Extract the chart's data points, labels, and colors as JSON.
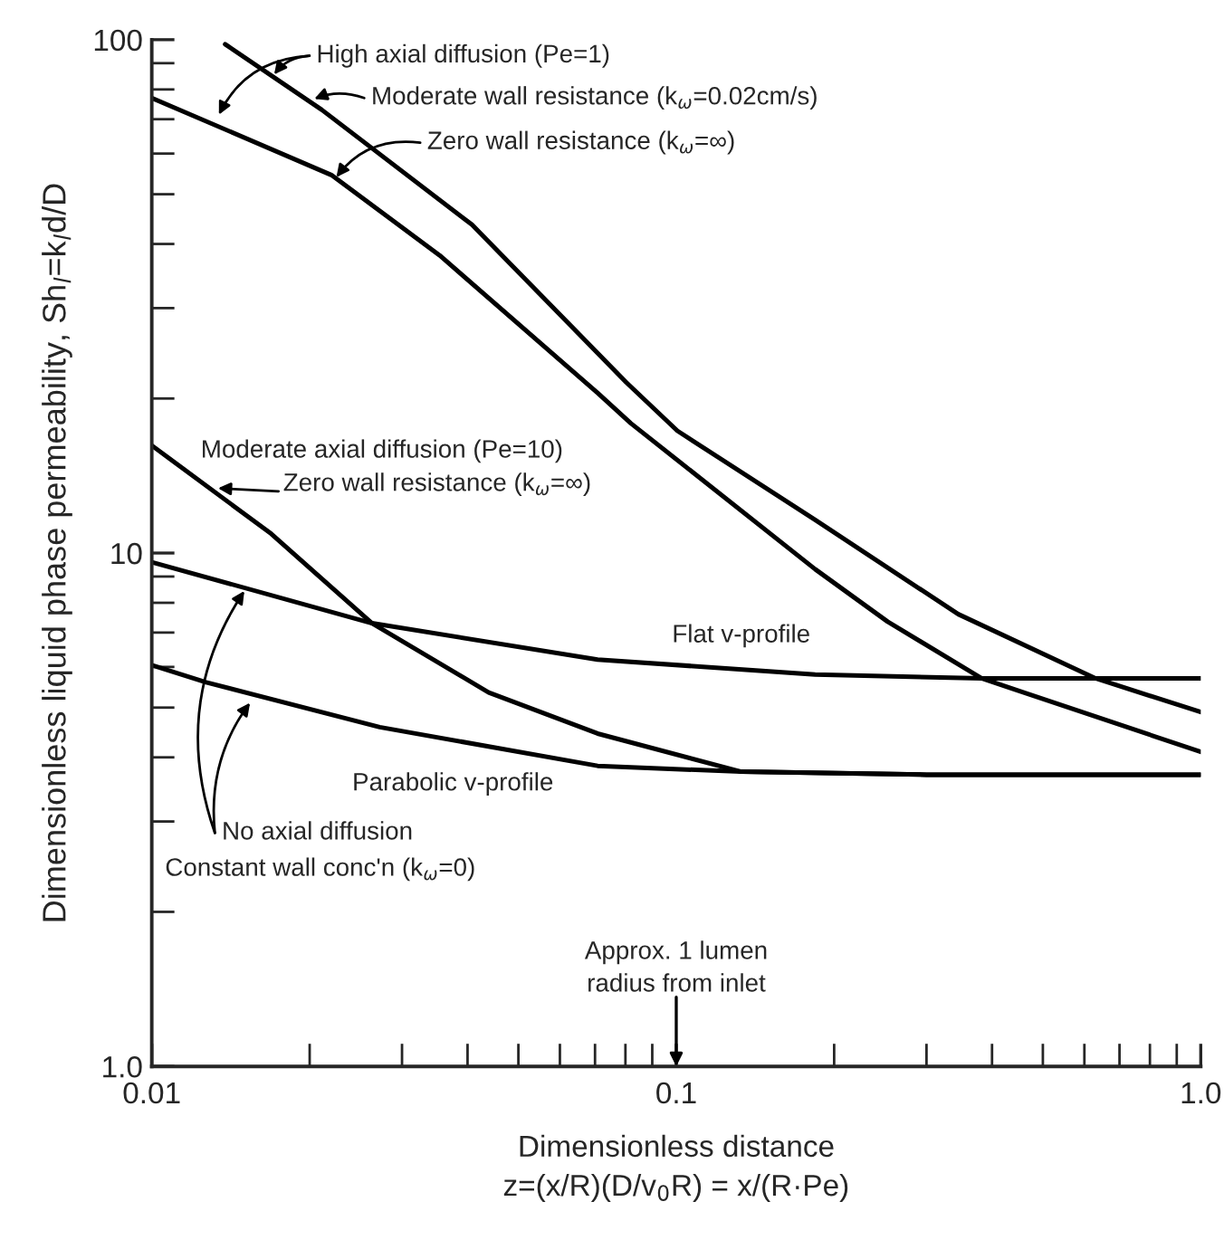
{
  "chart_data": {
    "type": "line",
    "log": "xy",
    "grid": false,
    "xlabel": "Dimensionless distance\nz=(x/R)(D/v$_{0}$R) = x/(R·Pe)",
    "ylabel": "Dimensionless liquid phase permeability, Sh$_{l}$=k$_{l}$d/D",
    "xlim": [
      0.01,
      1.0
    ],
    "ylim": [
      1.0,
      100
    ],
    "xticks": [
      0.01,
      0.1,
      {
        "value": 1.0,
        "label": "1.0"
      }
    ],
    "yticks": [
      {
        "value": 1.0,
        "label": "1.0"
      },
      10,
      100
    ],
    "series": [
      {
        "color": "#000000",
        "x": [
          0.0138,
          0.0211,
          0.0408,
          0.0803,
          0.1005,
          0.184,
          0.345,
          0.63,
          1.0
        ],
        "values": [
          98,
          73,
          43.6,
          21.5,
          17.3,
          11.6,
          7.6,
          5.7,
          4.9
        ]
      },
      {
        "color": "#000000",
        "x": [
          0.01,
          0.022,
          0.0354,
          0.0708,
          0.0819,
          0.184,
          0.253,
          0.382,
          1.0
        ],
        "values": [
          77,
          54.5,
          38,
          20.5,
          17.9,
          9.3,
          7.35,
          5.7,
          4.1
        ]
      },
      {
        "color": "#000000",
        "x": [
          0.01,
          0.0169,
          0.0263,
          0.0439,
          0.0708,
          0.133,
          0.3,
          1.0
        ],
        "values": [
          16.2,
          10.9,
          7.3,
          5.35,
          4.45,
          3.75,
          3.7,
          3.7
        ]
      },
      {
        "color": "#000000",
        "x": [
          0.01,
          0.0263,
          0.0708,
          0.184,
          0.382,
          1.0
        ],
        "values": [
          9.6,
          7.3,
          6.2,
          5.8,
          5.7,
          5.7
        ]
      },
      {
        "color": "#000000",
        "x": [
          0.01,
          0.0127,
          0.0272,
          0.0708,
          0.133,
          0.3,
          1.0
        ],
        "values": [
          6.05,
          5.6,
          4.58,
          3.85,
          3.75,
          3.7,
          3.7
        ]
      }
    ],
    "annotations": [
      {
        "text": "High axial diffusion (Pe=1)",
        "x": 0.0169,
        "y": 84
      },
      {
        "text": "Moderate wall resistance (k$_{ω}$=0.02cm/s)",
        "x": 0.02,
        "y": 76
      },
      {
        "text": "Zero wall resistance (k$_{ω}$=∞)",
        "x": 0.0222,
        "y": 53
      },
      "Moderate axial diffusion (Pe=10)",
      "Zero wall resistance (k$_{ω}$=∞)",
      "Flat v-profile",
      "Parabolic v-profile",
      {
        "text": "No axial diffusion",
        "x": 0.0152,
        "y": 8.6
      },
      {
        "text": "Constant wall conc'n (k$_{ω}$=0)",
        "x": 0.0156,
        "y": 5.2
      },
      "Approx. 1 lumen\nradius from inlet"
    ]
  }
}
